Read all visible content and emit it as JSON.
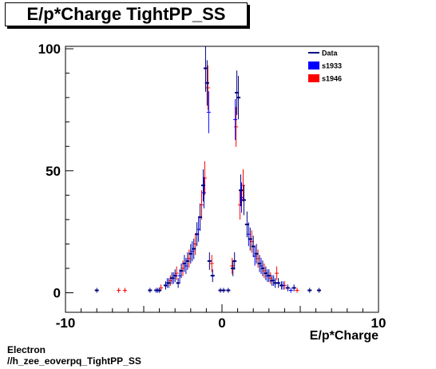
{
  "chart_data": {
    "type": "scatter",
    "title": "E/p*Charge TightPP_SS",
    "xlabel": "E/p*Charge",
    "ylabel": "",
    "xlim": [
      -10,
      10
    ],
    "ylim": [
      -8,
      101
    ],
    "x_ticks": [
      -10,
      0,
      10
    ],
    "y_ticks": [
      0,
      50,
      100
    ],
    "legend_position": "top-right",
    "series": [
      {
        "name": "Data",
        "color": "#000080",
        "style": "errorbar",
        "points": [
          {
            "x": -8.0,
            "y": 1,
            "e": 1.0
          },
          {
            "x": -4.6,
            "y": 1,
            "e": 1.0
          },
          {
            "x": -4.2,
            "y": 1,
            "e": 1.0
          },
          {
            "x": -4.0,
            "y": 1,
            "e": 1.0
          },
          {
            "x": -3.6,
            "y": 3,
            "e": 1.7
          },
          {
            "x": -3.4,
            "y": 4,
            "e": 2.0
          },
          {
            "x": -3.2,
            "y": 6,
            "e": 2.4
          },
          {
            "x": -3.0,
            "y": 7,
            "e": 2.6
          },
          {
            "x": -2.8,
            "y": 4,
            "e": 2.0
          },
          {
            "x": -2.6,
            "y": 9,
            "e": 3.0
          },
          {
            "x": -2.4,
            "y": 12,
            "e": 3.5
          },
          {
            "x": -2.2,
            "y": 13,
            "e": 3.6
          },
          {
            "x": -2.0,
            "y": 16,
            "e": 4.0
          },
          {
            "x": -1.8,
            "y": 18,
            "e": 4.2
          },
          {
            "x": -1.6,
            "y": 24,
            "e": 4.9
          },
          {
            "x": -1.4,
            "y": 31,
            "e": 5.6
          },
          {
            "x": -1.2,
            "y": 44,
            "e": 6.6
          },
          {
            "x": -1.05,
            "y": 92,
            "e": 9.6
          },
          {
            "x": -0.95,
            "y": 86,
            "e": 9.3
          },
          {
            "x": -0.8,
            "y": 13,
            "e": 3.6
          },
          {
            "x": -0.6,
            "y": 7,
            "e": 2.6
          },
          {
            "x": -0.1,
            "y": 1,
            "e": 1.0
          },
          {
            "x": 0.1,
            "y": 1,
            "e": 1.0
          },
          {
            "x": 0.4,
            "y": 1,
            "e": 1.0
          },
          {
            "x": 0.7,
            "y": 10,
            "e": 3.2
          },
          {
            "x": 0.8,
            "y": 13,
            "e": 3.6
          },
          {
            "x": 0.95,
            "y": 82,
            "e": 9.1
          },
          {
            "x": 1.05,
            "y": 80,
            "e": 8.9
          },
          {
            "x": 1.2,
            "y": 42,
            "e": 6.5
          },
          {
            "x": 1.4,
            "y": 38,
            "e": 6.2
          },
          {
            "x": 1.6,
            "y": 28,
            "e": 5.3
          },
          {
            "x": 1.8,
            "y": 22,
            "e": 4.7
          },
          {
            "x": 2.0,
            "y": 19,
            "e": 4.4
          },
          {
            "x": 2.2,
            "y": 16,
            "e": 4.0
          },
          {
            "x": 2.4,
            "y": 12,
            "e": 3.5
          },
          {
            "x": 2.6,
            "y": 10,
            "e": 3.2
          },
          {
            "x": 2.8,
            "y": 8,
            "e": 2.8
          },
          {
            "x": 3.0,
            "y": 7,
            "e": 2.6
          },
          {
            "x": 3.2,
            "y": 5,
            "e": 2.2
          },
          {
            "x": 3.4,
            "y": 4,
            "e": 2.0
          },
          {
            "x": 3.6,
            "y": 4,
            "e": 2.0
          },
          {
            "x": 3.8,
            "y": 3,
            "e": 1.7
          },
          {
            "x": 4.2,
            "y": 2,
            "e": 1.4
          },
          {
            "x": 4.6,
            "y": 2,
            "e": 1.4
          },
          {
            "x": 5.6,
            "y": 1,
            "e": 1.0
          },
          {
            "x": 6.2,
            "y": 1,
            "e": 1.0
          }
        ]
      },
      {
        "name": "s1933",
        "color": "#0000ff",
        "style": "errorbar",
        "points": [
          {
            "x": -4.1,
            "y": 1,
            "e": 1.0
          },
          {
            "x": -3.5,
            "y": 4,
            "e": 2.0
          },
          {
            "x": -3.1,
            "y": 6,
            "e": 2.4
          },
          {
            "x": -2.7,
            "y": 7,
            "e": 2.6
          },
          {
            "x": -2.3,
            "y": 11,
            "e": 3.3
          },
          {
            "x": -1.9,
            "y": 17,
            "e": 4.1
          },
          {
            "x": -1.5,
            "y": 26,
            "e": 5.1
          },
          {
            "x": -1.15,
            "y": 41,
            "e": 6.4
          },
          {
            "x": -0.85,
            "y": 74,
            "e": 8.6
          },
          {
            "x": 0.85,
            "y": 71,
            "e": 8.4
          },
          {
            "x": 1.25,
            "y": 39,
            "e": 6.2
          },
          {
            "x": 1.7,
            "y": 24,
            "e": 4.9
          },
          {
            "x": 2.1,
            "y": 15,
            "e": 3.9
          },
          {
            "x": 2.5,
            "y": 11,
            "e": 3.3
          },
          {
            "x": 2.9,
            "y": 7,
            "e": 2.6
          },
          {
            "x": 3.3,
            "y": 5,
            "e": 2.2
          },
          {
            "x": 3.9,
            "y": 3,
            "e": 1.7
          },
          {
            "x": 4.4,
            "y": 1,
            "e": 1.0
          }
        ]
      },
      {
        "name": "s1946",
        "color": "#ff0000",
        "style": "errorbar",
        "points": [
          {
            "x": -6.6,
            "y": 1,
            "e": 1.0
          },
          {
            "x": -6.2,
            "y": 1,
            "e": 1.0
          },
          {
            "x": -3.9,
            "y": 2,
            "e": 1.4
          },
          {
            "x": -3.3,
            "y": 5,
            "e": 2.2
          },
          {
            "x": -2.9,
            "y": 8,
            "e": 2.8
          },
          {
            "x": -2.5,
            "y": 10,
            "e": 3.2
          },
          {
            "x": -2.1,
            "y": 14,
            "e": 3.7
          },
          {
            "x": -1.7,
            "y": 20,
            "e": 4.5
          },
          {
            "x": -1.3,
            "y": 36,
            "e": 6.0
          },
          {
            "x": -1.1,
            "y": 47,
            "e": 6.9
          },
          {
            "x": -0.9,
            "y": 84,
            "e": 9.2
          },
          {
            "x": -0.65,
            "y": 12,
            "e": 3.5
          },
          {
            "x": 0.65,
            "y": 11,
            "e": 3.3
          },
          {
            "x": 0.9,
            "y": 68,
            "e": 8.2
          },
          {
            "x": 1.15,
            "y": 36,
            "e": 6.0
          },
          {
            "x": 1.35,
            "y": 44,
            "e": 6.6
          },
          {
            "x": 1.9,
            "y": 21,
            "e": 4.6
          },
          {
            "x": 2.3,
            "y": 14,
            "e": 3.7
          },
          {
            "x": 2.7,
            "y": 9,
            "e": 3.0
          },
          {
            "x": 3.1,
            "y": 6,
            "e": 2.4
          },
          {
            "x": 3.5,
            "y": 8,
            "e": 2.8
          },
          {
            "x": 4.0,
            "y": 3,
            "e": 1.7
          },
          {
            "x": 4.8,
            "y": 1,
            "e": 1.0
          }
        ]
      }
    ]
  },
  "footer": {
    "line1": "Electron",
    "line2": "//h_zee_eoverpq_TightPP_SS"
  }
}
